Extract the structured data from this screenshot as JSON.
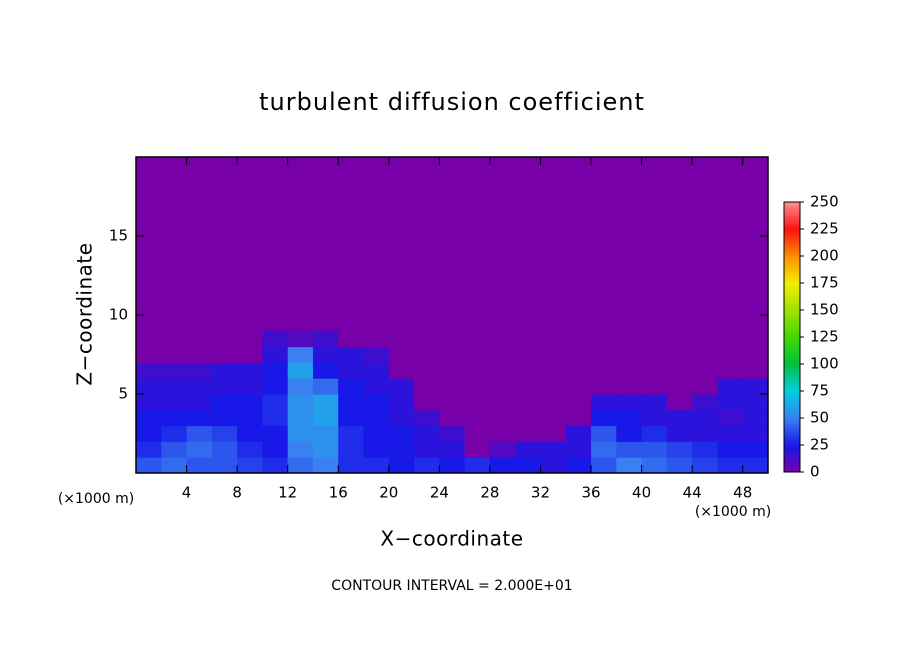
{
  "chart_data": {
    "type": "heatmap",
    "title": "turbulent diffusion coefficient",
    "x_label": "X−coordinate",
    "y_label": "Z−coordinate",
    "x_unit_label": "(×1000 m)",
    "annotation": "CONTOUR INTERVAL = 2.000E+01",
    "xlim": [
      0,
      50
    ],
    "ylim": [
      0,
      20
    ],
    "xticks": [
      4,
      8,
      12,
      16,
      20,
      24,
      28,
      32,
      36,
      40,
      44,
      48
    ],
    "yticks": [
      5,
      10,
      15
    ],
    "x": [
      1,
      3,
      5,
      7,
      9,
      11,
      13,
      15,
      17,
      19,
      21,
      23,
      25,
      27,
      29,
      31,
      33,
      35,
      37,
      39,
      41,
      43,
      45,
      47,
      49
    ],
    "y": [
      0.5,
      1.5,
      2.5,
      3.5,
      4.5,
      5.5,
      6.5,
      7.5,
      8.5
    ],
    "z": [
      [
        40,
        45,
        40,
        40,
        35,
        30,
        45,
        50,
        30,
        30,
        25,
        30,
        25,
        30,
        25,
        25,
        20,
        25,
        40,
        50,
        45,
        40,
        35,
        30,
        30
      ],
      [
        30,
        40,
        45,
        40,
        30,
        25,
        50,
        55,
        30,
        25,
        25,
        20,
        20,
        0,
        10,
        20,
        20,
        20,
        45,
        40,
        40,
        35,
        30,
        25,
        25
      ],
      [
        25,
        30,
        40,
        35,
        25,
        25,
        55,
        55,
        30,
        25,
        25,
        20,
        15,
        0,
        0,
        0,
        0,
        20,
        40,
        25,
        30,
        20,
        20,
        20,
        20
      ],
      [
        25,
        25,
        25,
        25,
        25,
        30,
        55,
        60,
        25,
        25,
        20,
        15,
        0,
        0,
        0,
        0,
        0,
        0,
        25,
        25,
        20,
        20,
        20,
        15,
        20
      ],
      [
        20,
        20,
        20,
        25,
        25,
        30,
        55,
        60,
        25,
        25,
        20,
        0,
        0,
        0,
        0,
        0,
        0,
        0,
        20,
        20,
        20,
        0,
        15,
        20,
        20
      ],
      [
        20,
        20,
        20,
        20,
        20,
        25,
        50,
        45,
        25,
        20,
        20,
        0,
        0,
        0,
        0,
        0,
        0,
        0,
        0,
        0,
        0,
        0,
        0,
        20,
        20
      ],
      [
        15,
        15,
        15,
        20,
        20,
        25,
        60,
        25,
        20,
        20,
        0,
        0,
        0,
        0,
        0,
        0,
        0,
        0,
        0,
        0,
        0,
        0,
        0,
        0,
        0
      ],
      [
        0,
        0,
        0,
        0,
        0,
        20,
        50,
        20,
        20,
        15,
        0,
        0,
        0,
        0,
        0,
        0,
        0,
        0,
        0,
        0,
        0,
        0,
        0,
        0,
        0
      ],
      [
        0,
        0,
        0,
        0,
        0,
        15,
        10,
        15,
        0,
        0,
        0,
        0,
        0,
        0,
        0,
        0,
        0,
        0,
        0,
        0,
        0,
        0,
        0,
        0,
        0
      ]
    ],
    "zlim": [
      0,
      250
    ],
    "colorbar_ticks": [
      0,
      25,
      50,
      75,
      100,
      125,
      150,
      175,
      200,
      225,
      250
    ],
    "colorscale": [
      "#7800a8",
      "#1818e8",
      "#3a80f0",
      "#00d0e0",
      "#00c040",
      "#40d800",
      "#a0e000",
      "#f0f000",
      "#ff9000",
      "#ff1010",
      "#ff9090"
    ]
  }
}
